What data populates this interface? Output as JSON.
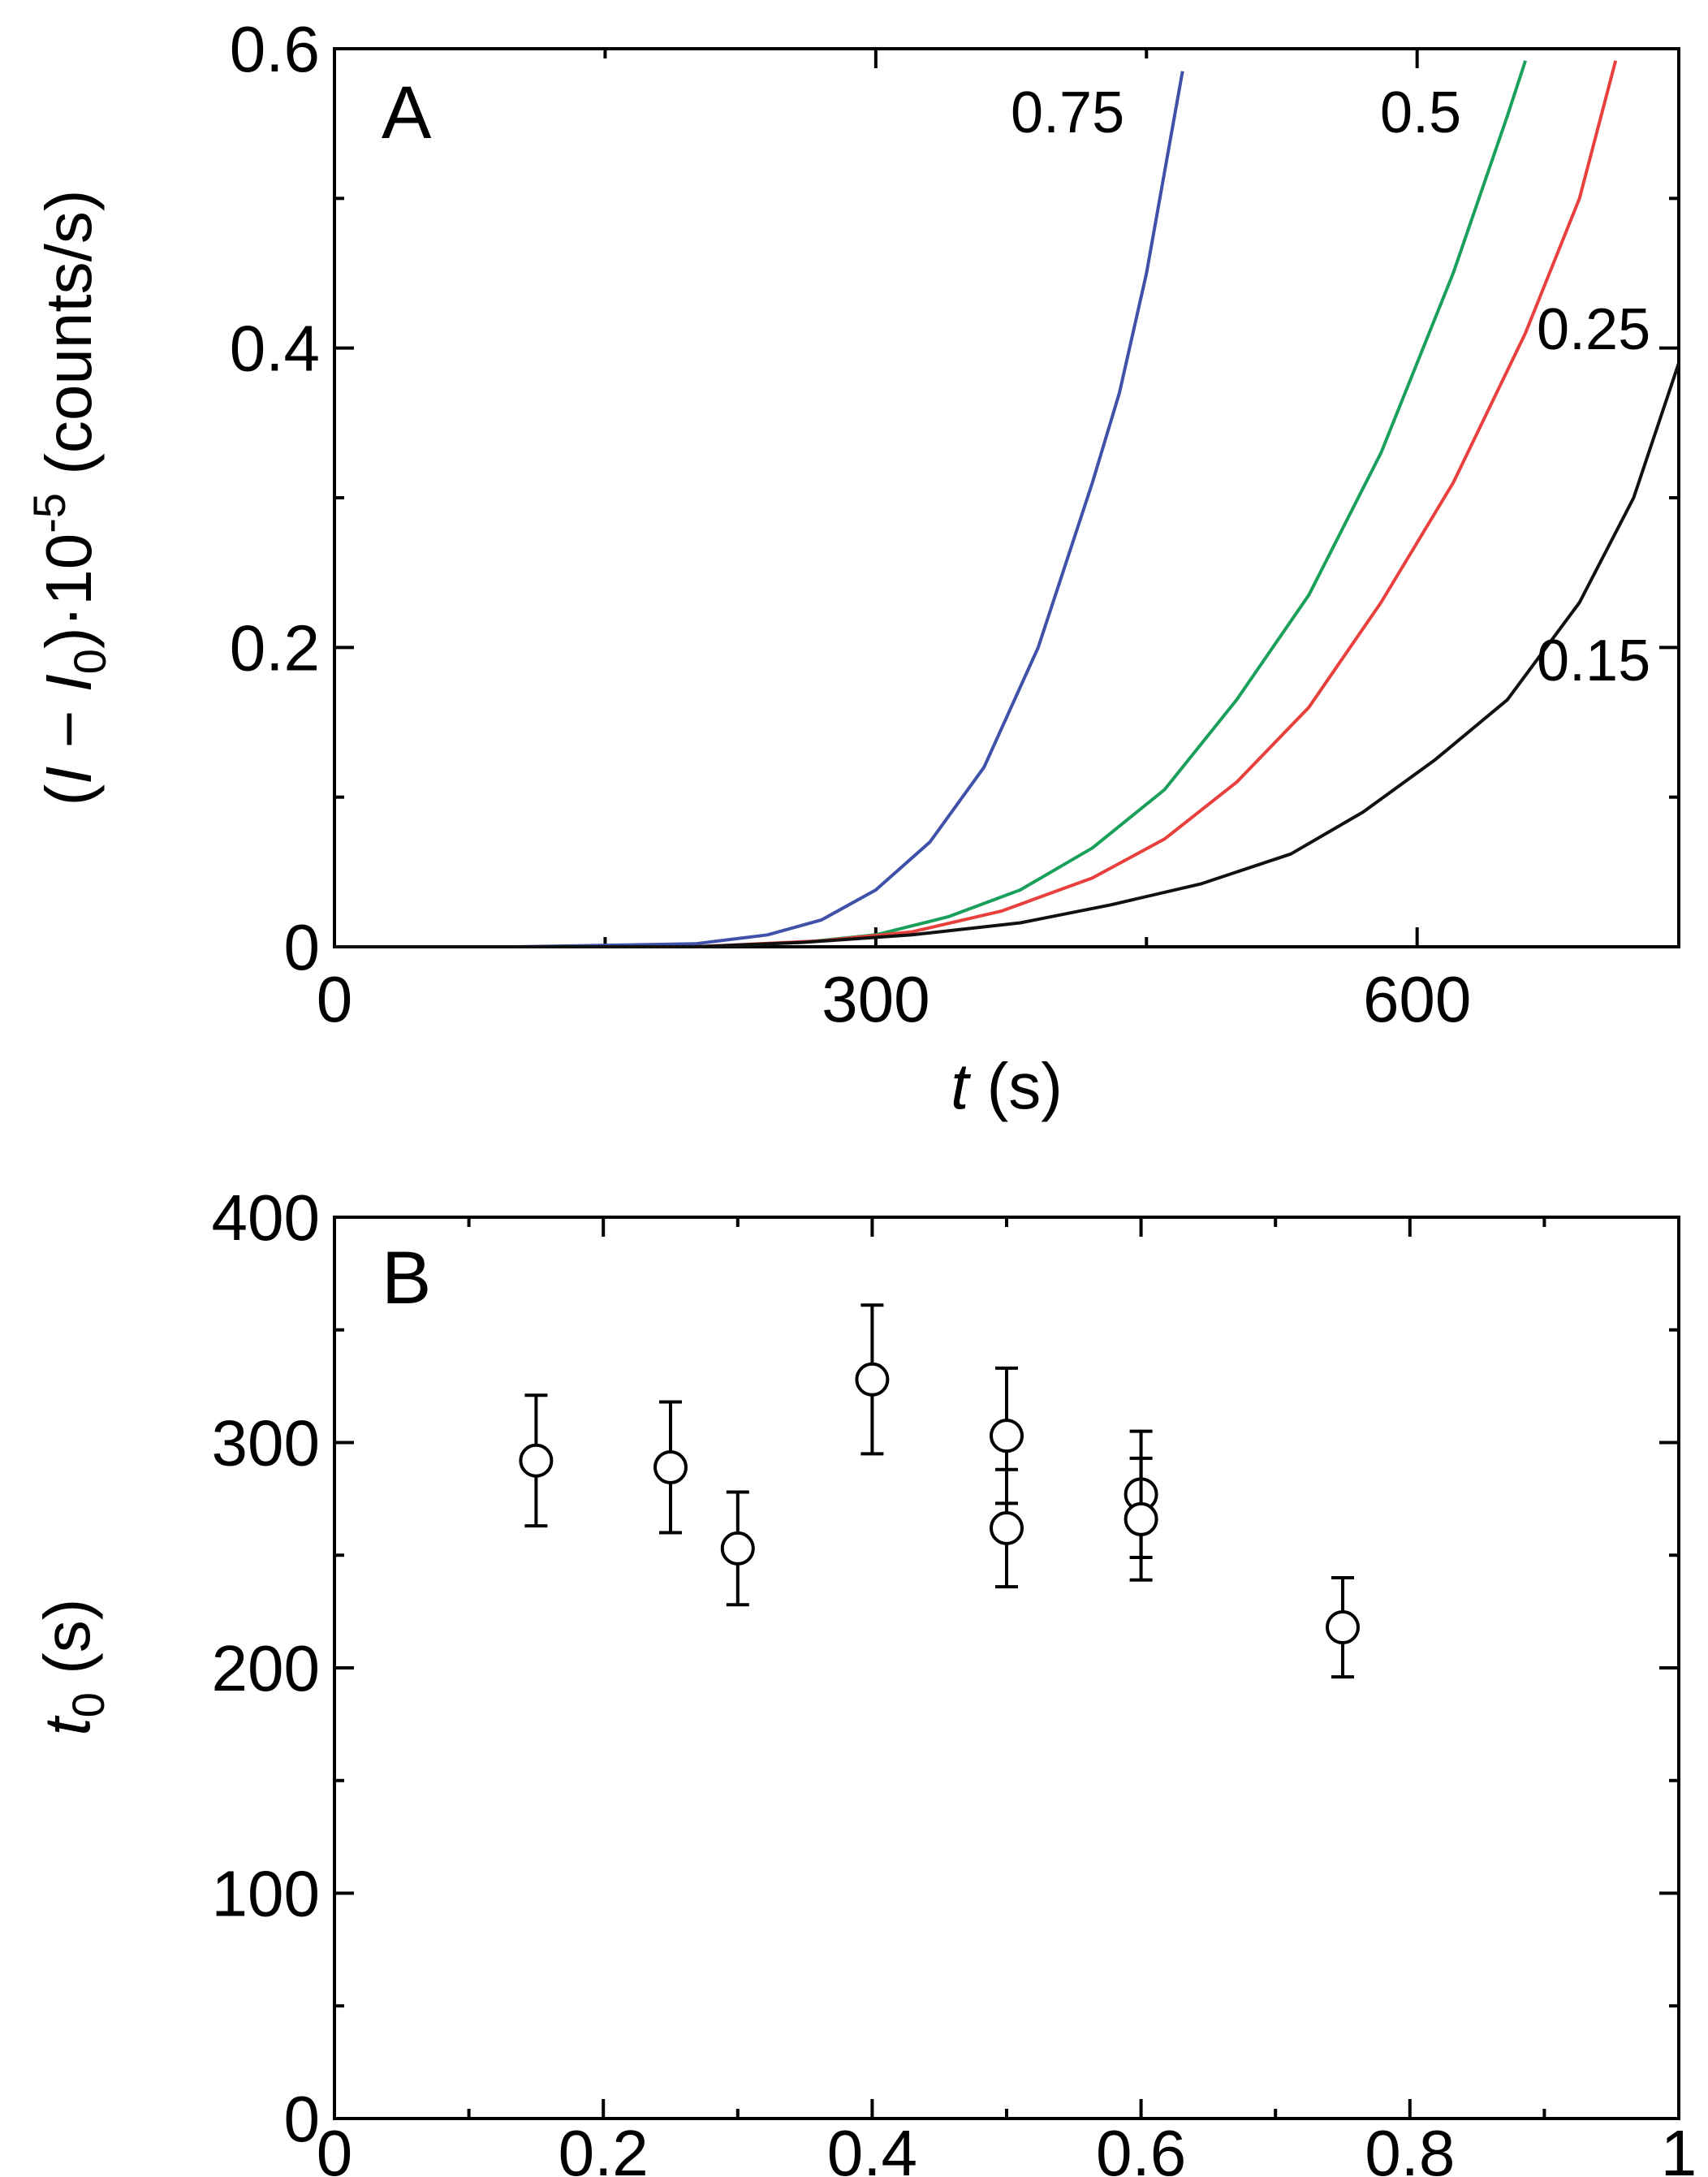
{
  "chart_data": [
    {
      "panel": "A",
      "type": "line",
      "xlabel_italic": "t",
      "xlabel_unit": " (s)",
      "ylabel_parts": [
        "(",
        "I",
        " − ",
        "I",
        "0",
        ")·10",
        "-5",
        " (counts/s)"
      ],
      "xlim": [
        0,
        745
      ],
      "ylim": [
        0,
        0.6
      ],
      "xticks": [
        0,
        300,
        600
      ],
      "xtick_labels": [
        "0",
        "300",
        "600"
      ],
      "yticks": [
        0,
        0.2,
        0.4,
        0.6
      ],
      "ytick_labels": [
        "0",
        "0.2",
        "0.4",
        "0.6"
      ],
      "series": [
        {
          "name": "0.75",
          "color": "#3f51a8",
          "x": [
            0,
            100,
            200,
            240,
            270,
            300,
            330,
            360,
            390,
            420,
            435,
            450,
            470
          ],
          "y": [
            0,
            0,
            0.002,
            0.008,
            0.018,
            0.038,
            0.07,
            0.12,
            0.2,
            0.31,
            0.37,
            0.45,
            0.585
          ]
        },
        {
          "name": "0.5",
          "color": "#1aa05a",
          "x": [
            0,
            100,
            200,
            260,
            300,
            340,
            380,
            420,
            460,
            500,
            540,
            580,
            620,
            650,
            660
          ],
          "y": [
            0,
            0,
            0,
            0.003,
            0.008,
            0.02,
            0.038,
            0.066,
            0.105,
            0.165,
            0.235,
            0.33,
            0.45,
            0.555,
            0.592
          ]
        },
        {
          "name": "0.25",
          "color": "#e8403c",
          "x": [
            0,
            100,
            200,
            270,
            320,
            370,
            420,
            460,
            500,
            540,
            580,
            620,
            660,
            690,
            710
          ],
          "y": [
            0,
            0,
            0,
            0.004,
            0.01,
            0.024,
            0.046,
            0.072,
            0.11,
            0.16,
            0.23,
            0.31,
            0.41,
            0.5,
            0.592
          ]
        },
        {
          "name": "0.15",
          "color": "#111111",
          "x": [
            0,
            100,
            200,
            260,
            320,
            380,
            430,
            480,
            530,
            570,
            610,
            650,
            690,
            720,
            745
          ],
          "y": [
            0,
            0,
            0,
            0.003,
            0.008,
            0.016,
            0.028,
            0.042,
            0.062,
            0.09,
            0.125,
            0.165,
            0.23,
            0.3,
            0.39
          ]
        }
      ],
      "curve_labels": [
        "0.75",
        "0.5",
        "0.25",
        "0.15"
      ],
      "title": ""
    },
    {
      "panel": "B",
      "type": "scatter",
      "xlabel": "",
      "ylabel_italic": "t",
      "ylabel_sub": "0",
      "ylabel_unit": " (s)",
      "xlim": [
        0,
        1
      ],
      "ylim": [
        0,
        400
      ],
      "xticks": [
        0,
        0.2,
        0.4,
        0.6,
        0.8,
        1
      ],
      "xtick_labels": [
        "0",
        "0.2",
        "0.4",
        "0.6",
        "0.8",
        "1"
      ],
      "yticks": [
        0,
        100,
        200,
        300,
        400
      ],
      "ytick_labels": [
        "0",
        "100",
        "200",
        "300",
        "400"
      ],
      "points": [
        {
          "x": 0.15,
          "y": 292,
          "err": 29
        },
        {
          "x": 0.25,
          "y": 289,
          "err": 29
        },
        {
          "x": 0.3,
          "y": 253,
          "err": 25
        },
        {
          "x": 0.4,
          "y": 328,
          "err": 33
        },
        {
          "x": 0.5,
          "y": 303,
          "err": 30
        },
        {
          "x": 0.5,
          "y": 262,
          "err": 26
        },
        {
          "x": 0.6,
          "y": 277,
          "err": 28
        },
        {
          "x": 0.6,
          "y": 266,
          "err": 27
        },
        {
          "x": 0.75,
          "y": 218,
          "err": 22
        }
      ],
      "title": ""
    }
  ]
}
